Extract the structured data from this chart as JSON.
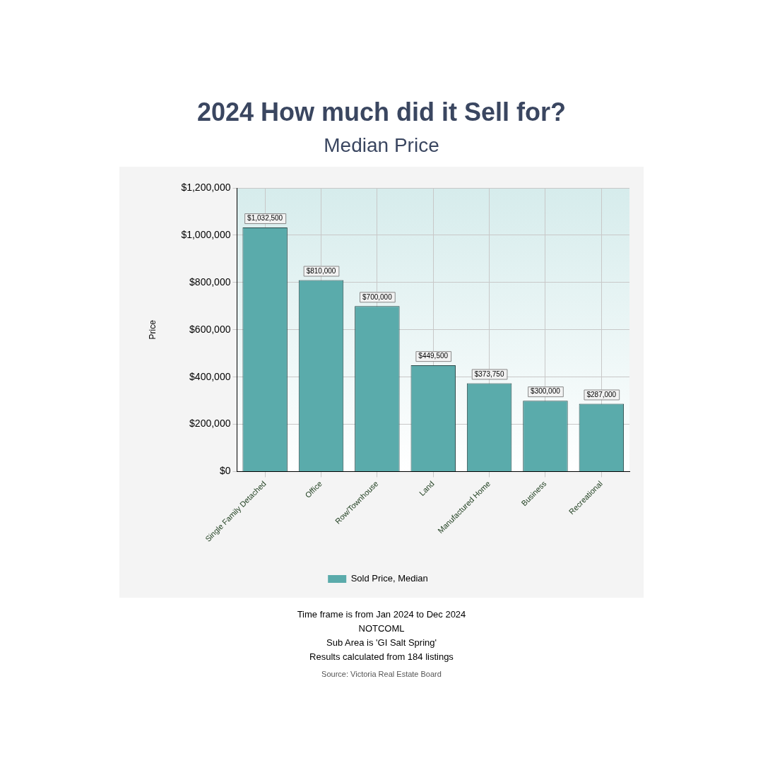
{
  "chart_data": {
    "type": "bar",
    "title": "2024 How much did it Sell for?",
    "subtitle": "Median Price",
    "ylabel": "Price",
    "categories": [
      "Single Family Detached",
      "Office",
      "Row/Townhouse",
      "Land",
      "Manufactured Home",
      "Business",
      "Recreational"
    ],
    "series": [
      {
        "name": "Sold Price, Median",
        "color": "#5aabab",
        "values": [
          1032500,
          810000,
          700000,
          449500,
          373750,
          300000,
          287000
        ],
        "value_labels": [
          "$1,032,500",
          "$810,000",
          "$700,000",
          "$449,500",
          "$373,750",
          "$300,000",
          "$287,000"
        ]
      }
    ],
    "ylim": [
      0,
      1200000
    ],
    "yticks": [
      {
        "value": 0,
        "label": "$0"
      },
      {
        "value": 200000,
        "label": "$200,000"
      },
      {
        "value": 400000,
        "label": "$400,000"
      },
      {
        "value": 600000,
        "label": "$600,000"
      },
      {
        "value": 800000,
        "label": "$800,000"
      },
      {
        "value": 1000000,
        "label": "$1,000,000"
      },
      {
        "value": 1200000,
        "label": "$1,200,000"
      }
    ],
    "grid": true,
    "legend": "bottom",
    "annotations": [
      "Time frame is from Jan 2024 to Dec 2024",
      "NOTCOML",
      "Sub Area is 'GI Salt Spring'",
      "Results calculated from 184 listings",
      "Source: Victoria Real Estate Board"
    ]
  }
}
